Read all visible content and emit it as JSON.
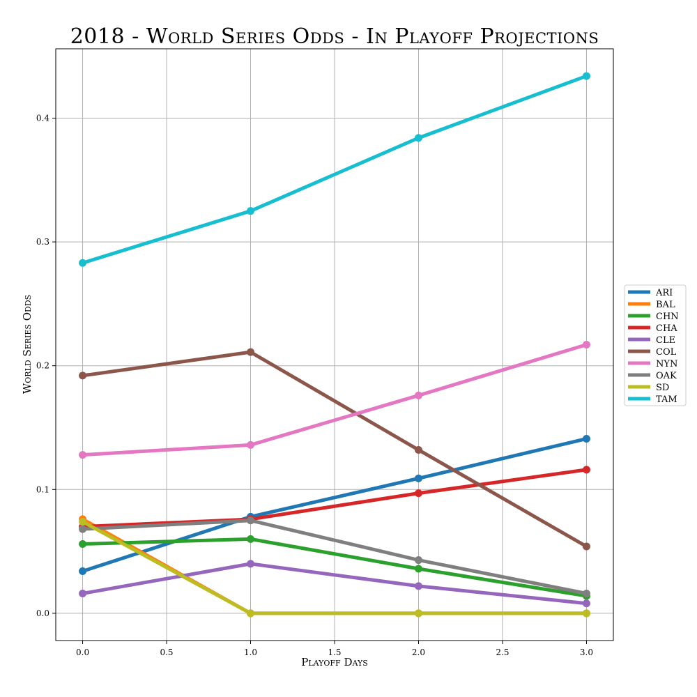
{
  "chart_data": {
    "type": "line",
    "title": "2018 - World Series Odds - In Playoff Projections",
    "xlabel": "Playoff Days",
    "ylabel": "World Series Odds",
    "x": [
      0.0,
      1.0,
      2.0,
      3.0
    ],
    "xlim": [
      -0.16,
      3.16
    ],
    "ylim": [
      -0.022,
      0.456
    ],
    "xticks": [
      0.0,
      0.5,
      1.0,
      1.5,
      2.0,
      2.5,
      3.0
    ],
    "xtick_labels": [
      "0.0",
      "0.5",
      "1.0",
      "1.5",
      "2.0",
      "2.5",
      "3.0"
    ],
    "yticks": [
      0.0,
      0.1,
      0.2,
      0.3,
      0.4
    ],
    "ytick_labels": [
      "0.0",
      "0.1",
      "0.2",
      "0.3",
      "0.4"
    ],
    "grid": true,
    "legend_position": "right",
    "series": [
      {
        "name": "ARI",
        "color": "#1f77b4",
        "values": [
          0.034,
          0.078,
          0.109,
          0.141
        ]
      },
      {
        "name": "BAL",
        "color": "#ff7f0e",
        "values": [
          0.076,
          0.0,
          0.0,
          0.0
        ]
      },
      {
        "name": "CHN",
        "color": "#2ca02c",
        "values": [
          0.056,
          0.06,
          0.036,
          0.014
        ]
      },
      {
        "name": "CHA",
        "color": "#d62728",
        "values": [
          0.07,
          0.076,
          0.097,
          0.116
        ]
      },
      {
        "name": "CLE",
        "color": "#9467bd",
        "values": [
          0.016,
          0.04,
          0.022,
          0.008
        ]
      },
      {
        "name": "COL",
        "color": "#8c564b",
        "values": [
          0.192,
          0.211,
          0.132,
          0.054
        ]
      },
      {
        "name": "NYN",
        "color": "#e377c2",
        "values": [
          0.128,
          0.136,
          0.176,
          0.217
        ]
      },
      {
        "name": "OAK",
        "color": "#7f7f7f",
        "values": [
          0.068,
          0.075,
          0.043,
          0.016
        ]
      },
      {
        "name": "SD",
        "color": "#bcbd22",
        "values": [
          0.074,
          0.0,
          0.0,
          0.0
        ]
      },
      {
        "name": "TAM",
        "color": "#17becf",
        "values": [
          0.283,
          0.325,
          0.384,
          0.434
        ]
      }
    ]
  }
}
